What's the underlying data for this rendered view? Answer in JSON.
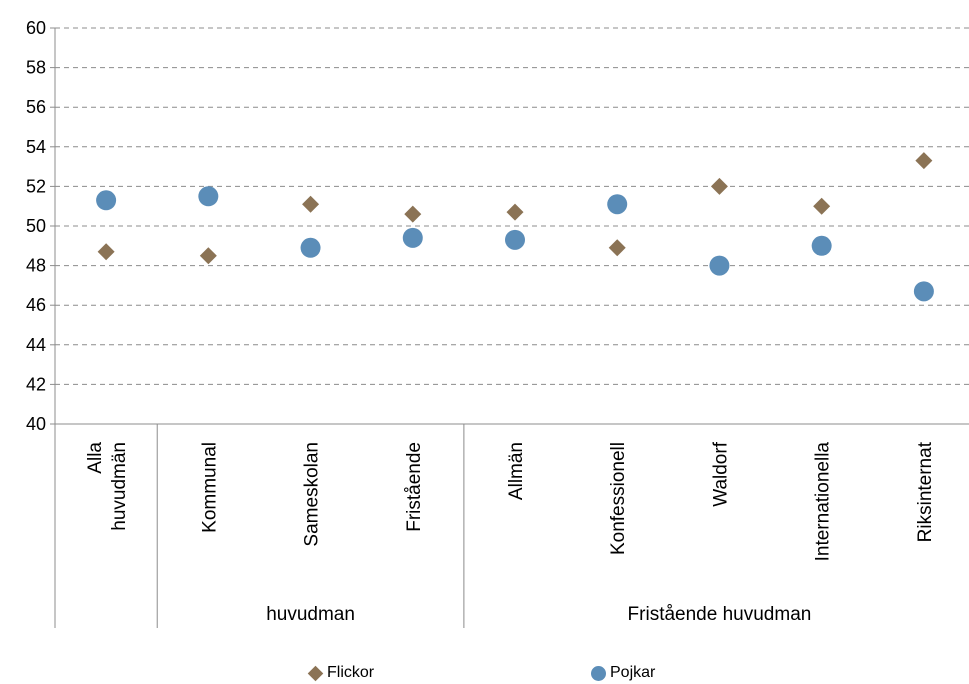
{
  "chart_data": {
    "type": "scatter",
    "title": "",
    "xlabel": "",
    "ylabel": "",
    "ylim": [
      40,
      60
    ],
    "yticks": [
      40,
      42,
      44,
      46,
      48,
      50,
      52,
      54,
      56,
      58,
      60
    ],
    "grid": "horizontal dashed",
    "legend_position": "bottom",
    "categories": [
      "Alla huvudmän",
      "Kommunal",
      "Sameskolan",
      "Fristående",
      "Allmän",
      "Konfessionell",
      "Waldorf",
      "Internationella",
      "Riksinternat"
    ],
    "groups": [
      {
        "label": "",
        "categories": [
          "Alla huvudmän"
        ]
      },
      {
        "label": "huvudman",
        "categories": [
          "Kommunal",
          "Sameskolan",
          "Fristående"
        ]
      },
      {
        "label": "Fristående huvudman",
        "categories": [
          "Allmän",
          "Konfessionell",
          "Waldorf",
          "Internationella",
          "Riksinternat"
        ]
      }
    ],
    "series": [
      {
        "name": "Flickor",
        "marker": "diamond",
        "color": "#8B7355",
        "values": [
          48.7,
          48.5,
          51.1,
          50.6,
          50.7,
          48.9,
          52.0,
          51.0,
          53.3
        ]
      },
      {
        "name": "Pojkar",
        "marker": "circle",
        "color": "#5B8DB8",
        "values": [
          51.3,
          51.5,
          48.9,
          49.4,
          49.3,
          51.1,
          48.0,
          49.0,
          46.7
        ]
      }
    ]
  },
  "legend": {
    "flickor_label": "Flickor",
    "pojkar_label": "Pojkar"
  }
}
